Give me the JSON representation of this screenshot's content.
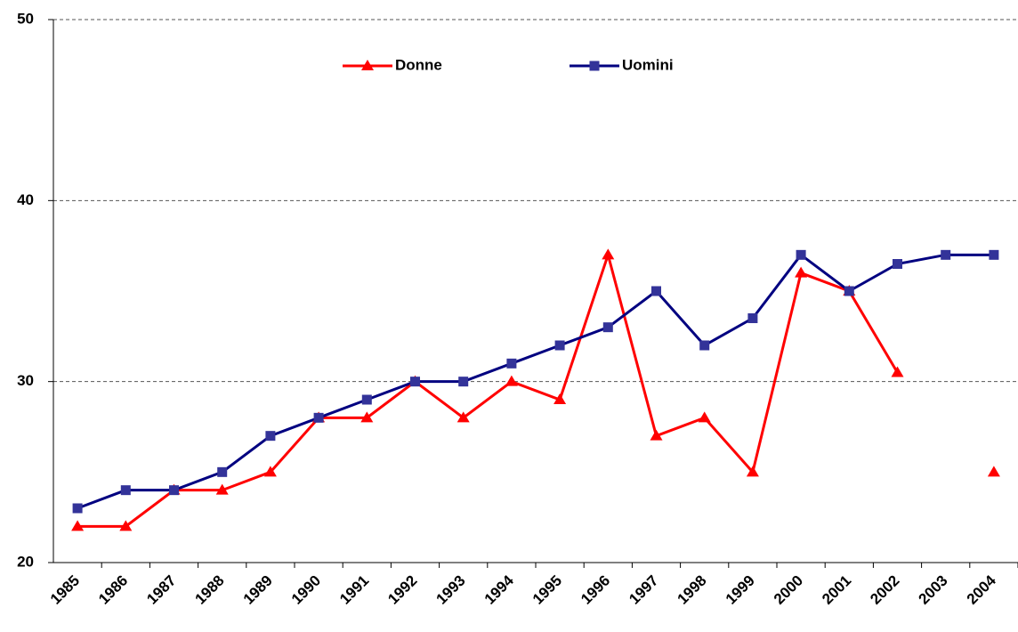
{
  "chart_data": {
    "type": "line",
    "categories": [
      "1985",
      "1986",
      "1987",
      "1988",
      "1989",
      "1990",
      "1991",
      "1992",
      "1993",
      "1994",
      "1995",
      "1996",
      "1997",
      "1998",
      "1999",
      "2000",
      "2001",
      "2002",
      "2003",
      "2004"
    ],
    "series": [
      {
        "name": "Donne",
        "color": "#ff0000",
        "marker": "triangle",
        "values": [
          22,
          22,
          24,
          24,
          25,
          28,
          28,
          30,
          28,
          30,
          29,
          37,
          27,
          28,
          25,
          36,
          35,
          30.5,
          null,
          25
        ]
      },
      {
        "name": "Uomini",
        "color": "#000080",
        "marker": "square",
        "values": [
          23,
          24,
          24,
          25,
          27,
          28,
          29,
          30,
          30,
          31,
          32,
          33,
          35,
          32,
          33.5,
          37,
          35,
          36.5,
          37,
          37
        ]
      }
    ],
    "ylim": [
      20,
      50
    ],
    "yticks": [
      20,
      30,
      40,
      50
    ],
    "grid": true,
    "legend": "top"
  }
}
